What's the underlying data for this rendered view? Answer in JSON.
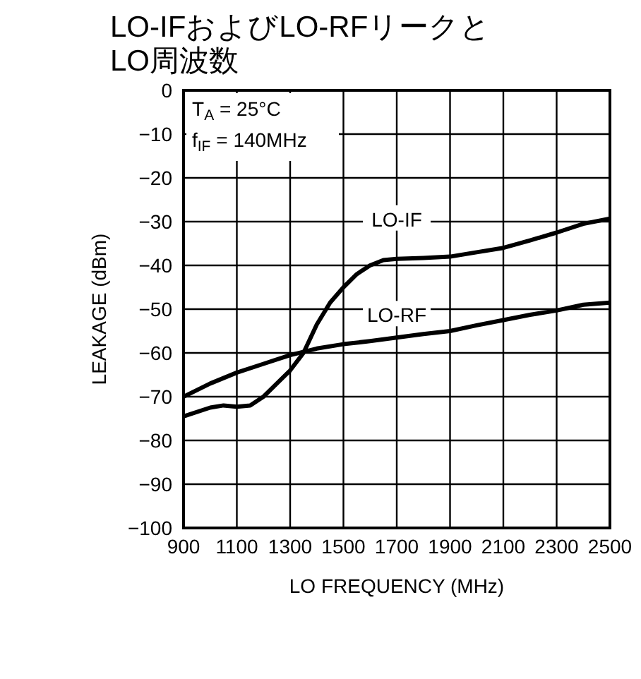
{
  "chart_data": {
    "type": "line",
    "title": "LO-IFおよびLO-RFリークとLO周波数",
    "xlabel": "LO FREQUENCY (MHz)",
    "ylabel": "LEAKAGE (dBm)",
    "annotations": [
      "T$_{A}$ = 25°C",
      "f$_{IF}$ = 140MHz"
    ],
    "xlim": [
      900,
      2500
    ],
    "xticks": [
      900,
      1100,
      1300,
      1500,
      1700,
      1900,
      2100,
      2300,
      2500
    ],
    "ylim": [
      -100,
      0
    ],
    "yticks": [
      -100,
      -90,
      -80,
      -70,
      -60,
      -50,
      -40,
      -30,
      -20,
      -10,
      0
    ],
    "grid": true,
    "legend": false,
    "marker": "none",
    "line_style": "solid",
    "series": [
      {
        "name": "LO-IF",
        "color": "#000000",
        "x": [
          900,
          1000,
          1050,
          1100,
          1150,
          1200,
          1250,
          1300,
          1350,
          1400,
          1450,
          1500,
          1550,
          1600,
          1650,
          1700,
          1800,
          1900,
          2000,
          2100,
          2200,
          2300,
          2400,
          2500
        ],
        "values": [
          -74.5,
          -72.5,
          -72,
          -72.3,
          -72,
          -70,
          -67,
          -64,
          -60,
          -53.5,
          -48.5,
          -45,
          -42,
          -40,
          -38.8,
          -38.5,
          -38.3,
          -38,
          -37,
          -36,
          -34.3,
          -32.5,
          -30.5,
          -29.3
        ]
      },
      {
        "name": "LO-RF",
        "color": "#000000",
        "x": [
          900,
          1000,
          1100,
          1200,
          1300,
          1400,
          1500,
          1600,
          1700,
          1800,
          1900,
          2000,
          2100,
          2200,
          2300,
          2400,
          2500
        ],
        "values": [
          -70,
          -67,
          -64.5,
          -62.5,
          -60.5,
          -59,
          -58,
          -57.3,
          -56.5,
          -55.7,
          -55,
          -53.7,
          -52.5,
          -51.3,
          -50.3,
          -49,
          -48.5
        ]
      }
    ]
  }
}
